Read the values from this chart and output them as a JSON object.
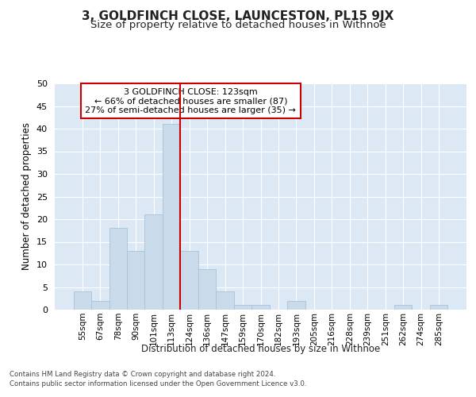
{
  "title": "3, GOLDFINCH CLOSE, LAUNCESTON, PL15 9JX",
  "subtitle": "Size of property relative to detached houses in Withnoe",
  "xlabel_bottom": "Distribution of detached houses by size in Withnoe",
  "ylabel": "Number of detached properties",
  "bar_labels": [
    "55sqm",
    "67sqm",
    "78sqm",
    "90sqm",
    "101sqm",
    "113sqm",
    "124sqm",
    "136sqm",
    "147sqm",
    "159sqm",
    "170sqm",
    "182sqm",
    "193sqm",
    "205sqm",
    "216sqm",
    "228sqm",
    "239sqm",
    "251sqm",
    "262sqm",
    "274sqm",
    "285sqm"
  ],
  "bar_values": [
    4,
    2,
    18,
    13,
    21,
    41,
    13,
    9,
    4,
    1,
    1,
    0,
    2,
    0,
    0,
    0,
    0,
    0,
    1,
    0,
    1
  ],
  "bar_color": "#c9daea",
  "bar_edge_color": "#a8c4d8",
  "annotation_line1": "3 GOLDFINCH CLOSE: 123sqm",
  "annotation_line2": "← 66% of detached houses are smaller (87)",
  "annotation_line3": "27% of semi-detached houses are larger (35) →",
  "annotation_box_facecolor": "#ffffff",
  "annotation_box_edgecolor": "#cc0000",
  "vline_color": "#cc0000",
  "vline_x": 5.5,
  "ylim": [
    0,
    50
  ],
  "yticks": [
    0,
    5,
    10,
    15,
    20,
    25,
    30,
    35,
    40,
    45,
    50
  ],
  "plot_bg_color": "#dce8f4",
  "grid_color": "#ffffff",
  "title_fontsize": 11,
  "subtitle_fontsize": 9.5,
  "footer_line1": "Contains HM Land Registry data © Crown copyright and database right 2024.",
  "footer_line2": "Contains public sector information licensed under the Open Government Licence v3.0."
}
